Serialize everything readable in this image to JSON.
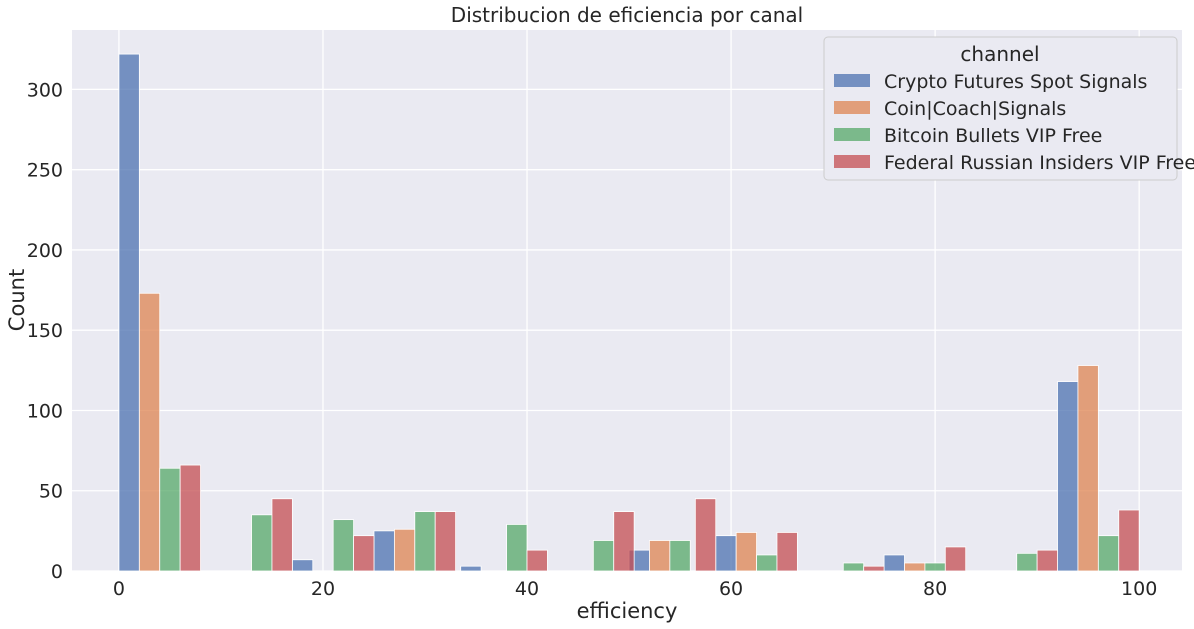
{
  "chart_data": {
    "type": "bar",
    "title": "Distribucion de eficiencia por canal",
    "xlabel": "efficiency",
    "ylabel": "Count",
    "xlim": [
      -4.6,
      104.2
    ],
    "ylim": [
      0,
      337
    ],
    "xticks": [
      0,
      20,
      40,
      60,
      80,
      100
    ],
    "yticks": [
      0,
      50,
      100,
      150,
      200,
      250,
      300
    ],
    "grid": true,
    "legend": {
      "title": "channel",
      "placement": "top-right"
    },
    "bin_width": 2.0,
    "series": [
      {
        "name": "Crypto Futures Spot Signals",
        "color": "#4c72b0",
        "bars": [
          [
            0,
            322
          ],
          [
            17,
            7
          ],
          [
            25,
            25
          ],
          [
            33.5,
            3
          ],
          [
            50,
            13
          ],
          [
            58.5,
            22
          ],
          [
            75,
            10
          ],
          [
            92,
            118
          ]
        ]
      },
      {
        "name": "Coin|Coach|Signals",
        "color": "#dd8452",
        "bars": [
          [
            2,
            173
          ],
          [
            27,
            26
          ],
          [
            52,
            19
          ],
          [
            60.5,
            24
          ],
          [
            77,
            5
          ],
          [
            94,
            128
          ]
        ]
      },
      {
        "name": "Bitcoin Bullets VIP Free",
        "color": "#55a868",
        "bars": [
          [
            4,
            64
          ],
          [
            13,
            35
          ],
          [
            21,
            32
          ],
          [
            29,
            37
          ],
          [
            38,
            29
          ],
          [
            46.5,
            19
          ],
          [
            54,
            19
          ],
          [
            62.5,
            10
          ],
          [
            71,
            5
          ],
          [
            79,
            5
          ],
          [
            88,
            11
          ],
          [
            96,
            22
          ]
        ]
      },
      {
        "name": "Federal Russian Insiders VIP Free",
        "color": "#c44e52",
        "bars": [
          [
            6,
            66
          ],
          [
            15,
            45
          ],
          [
            23,
            22
          ],
          [
            31,
            37
          ],
          [
            40,
            13
          ],
          [
            48.5,
            37
          ],
          [
            56.5,
            45
          ],
          [
            64.5,
            24
          ],
          [
            73,
            3
          ],
          [
            81,
            15
          ],
          [
            90,
            13
          ],
          [
            98,
            38
          ]
        ]
      }
    ]
  }
}
